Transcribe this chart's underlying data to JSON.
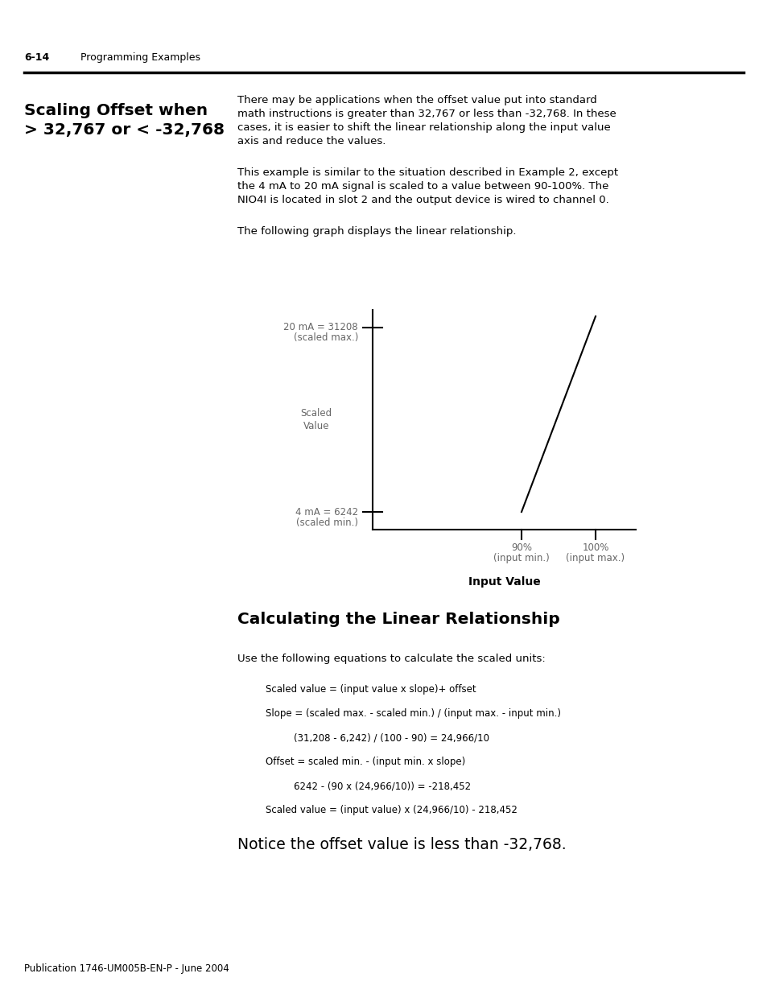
{
  "page_header_number": "6-14",
  "page_header_text": "Programming Examples",
  "background_color": "#ffffff",
  "section1_title_line1": "Scaling Offset when",
  "section1_title_line2": "> 32,767 or < -32,768",
  "para1_line1": "There may be applications when the offset value put into standard",
  "para1_line2": "math instructions is greater than 32,767 or less than -32,768. In these",
  "para1_line3": "cases, it is easier to shift the linear relationship along the input value",
  "para1_line4": "axis and reduce the values.",
  "para2_line1": "This example is similar to the situation described in Example 2, except",
  "para2_line2": "the 4 mA to 20 mA signal is scaled to a value between 90-100%. The",
  "para2_line3": "NIO4I is located in slot 2 and the output device is wired to channel 0.",
  "para3": "The following graph displays the linear relationship.",
  "graph_xlabel": "Input Value",
  "graph_ylabel_line1": "Scaled",
  "graph_ylabel_line2": "Value",
  "graph_ymax_line1": "20 mA = 31208",
  "graph_ymax_line2": "(scaled max.)",
  "graph_ymin_line1": "4 mA = 6242",
  "graph_ymin_line2": "(scaled min.)",
  "graph_x90_line1": "90%",
  "graph_x90_line2": "(input min.)",
  "graph_x100_line1": "100%",
  "graph_x100_line2": "(input max.)",
  "section2_title": "Calculating the Linear Relationship",
  "section2_intro": "Use the following equations to calculate the scaled units:",
  "eq1": "Scaled value = (input value x slope)+ offset",
  "eq2": "Slope = (scaled max. - scaled min.) / (input max. - input min.)",
  "eq3": "(31,208 - 6,242) / (100 - 90) = 24,966/10",
  "eq4": "Offset = scaled min. - (input min. x slope)",
  "eq5": "6242 - (90 x (24,966/10)) = -218,452",
  "eq6": "Scaled value = (input value) x (24,966/10) - 218,452",
  "conclusion": "Notice the offset value is less than -32,768.",
  "footer": "Publication 1746-UM005B-EN-P - June 2004"
}
